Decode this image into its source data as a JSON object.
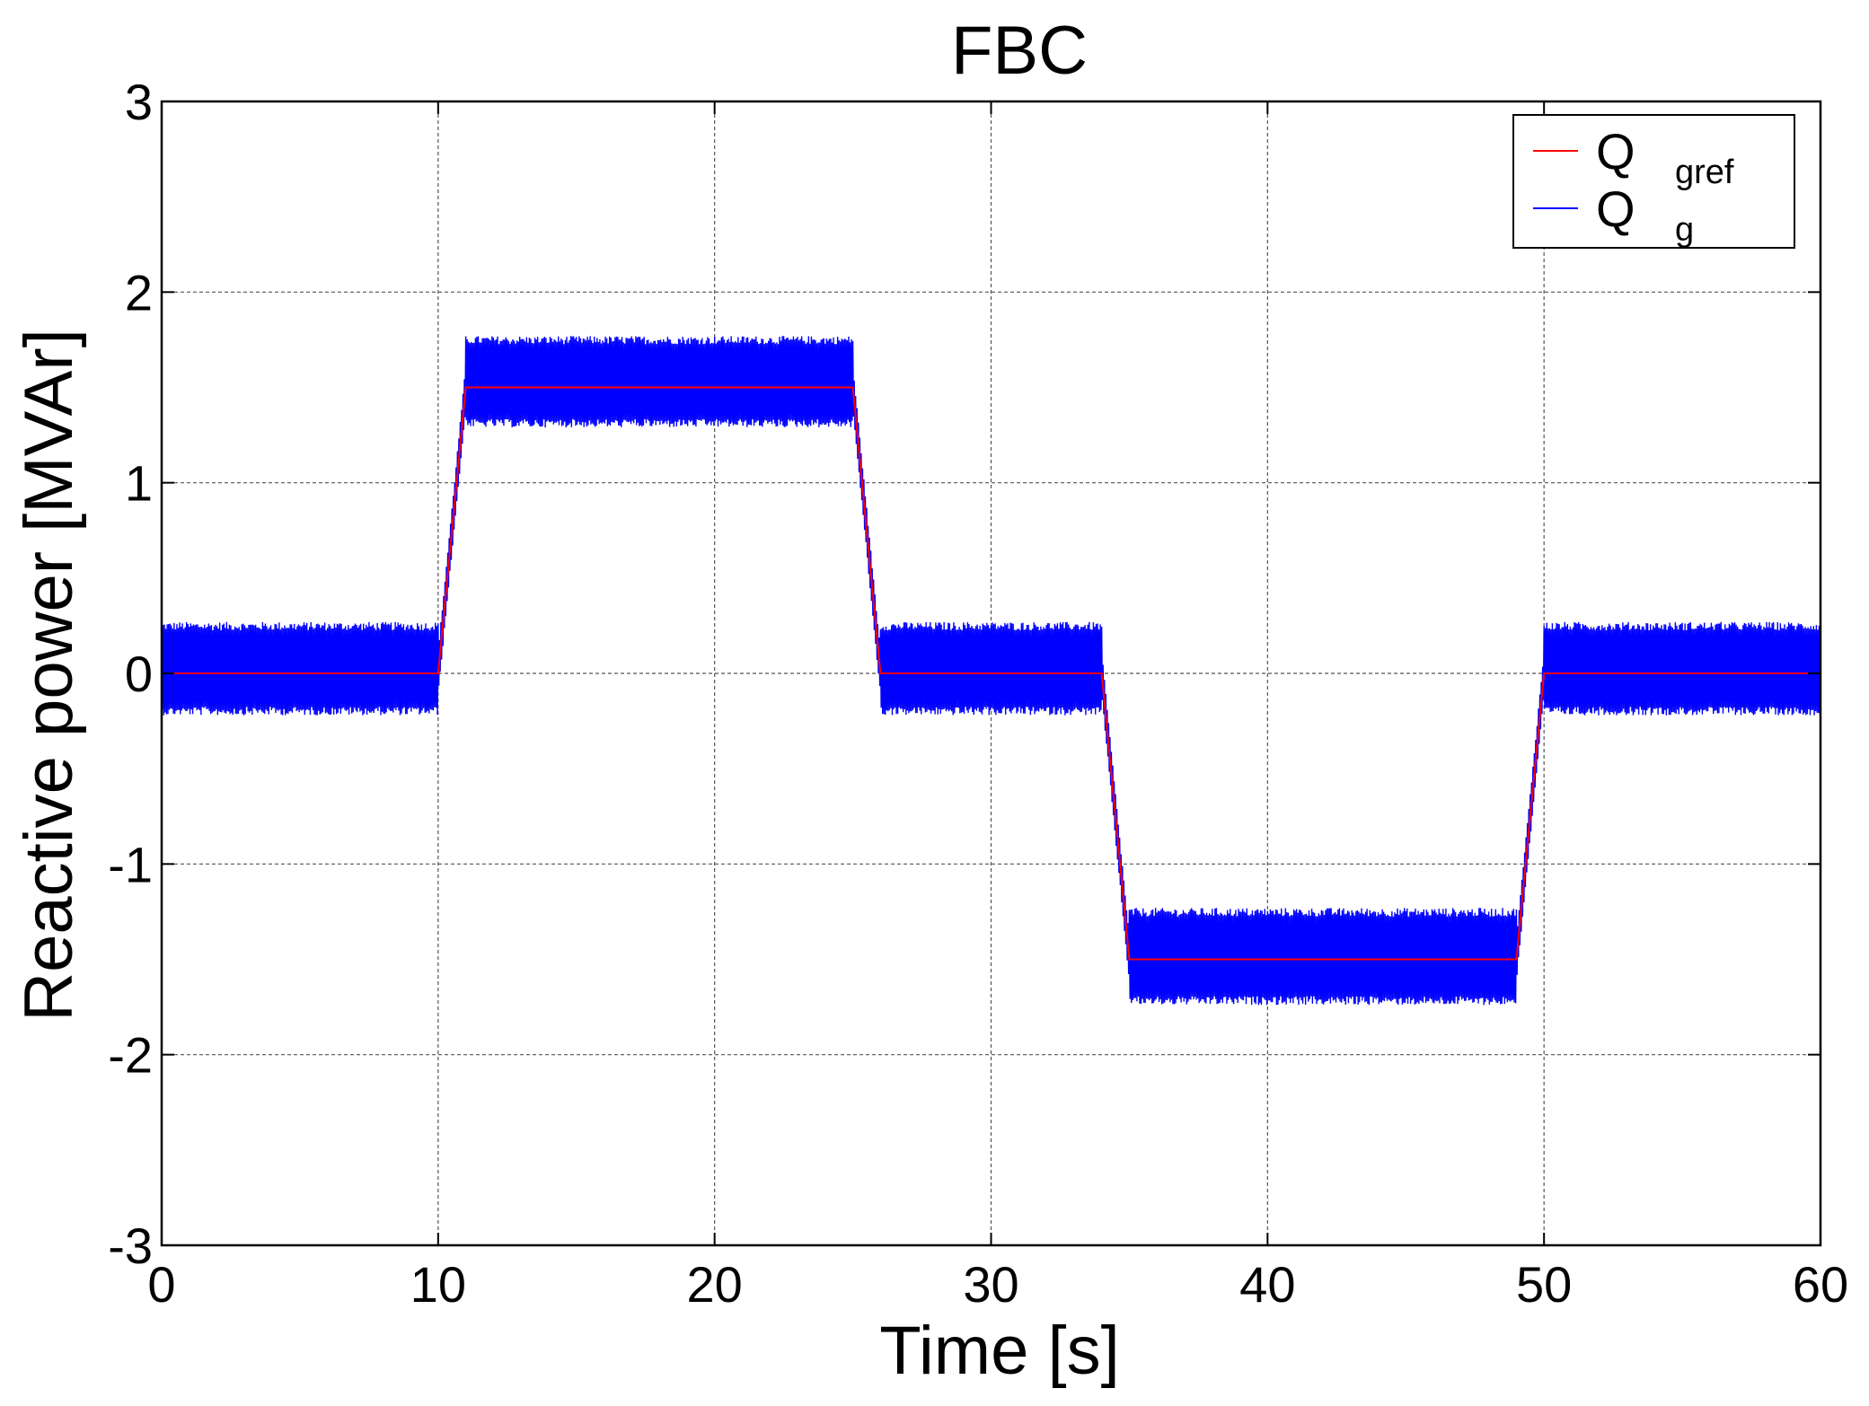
{
  "chart_data": {
    "type": "line",
    "title": "FBC",
    "xlabel": "Time [s]",
    "ylabel": "Reactive power [MVAr]",
    "xlim": [
      0,
      60
    ],
    "ylim": [
      -3,
      3
    ],
    "xticks": [
      0,
      10,
      20,
      30,
      40,
      50,
      60
    ],
    "yticks": [
      -3,
      -2,
      -1,
      0,
      1,
      2,
      3
    ],
    "grid": true,
    "legend_position": "top-right",
    "series": [
      {
        "name": "Q gref",
        "legend_main": "Q",
        "legend_sub": "gref",
        "color": "#ff0000",
        "x": [
          0,
          10,
          11,
          25,
          26,
          34,
          35,
          49,
          50,
          60
        ],
        "y": [
          0,
          0,
          1.5,
          1.5,
          0,
          0,
          -1.5,
          -1.5,
          0,
          0
        ]
      },
      {
        "name": "Q g",
        "legend_main": "Q",
        "legend_sub": "g",
        "color": "#0000ff",
        "style": "noisy tracking of reference",
        "envelope": [
          {
            "x_start": 0,
            "x_end": 10,
            "y_min": -0.22,
            "y_max": 0.27
          },
          {
            "x_start": 11,
            "x_end": 25,
            "y_min": 1.29,
            "y_max": 1.77
          },
          {
            "x_start": 26,
            "x_end": 34,
            "y_min": -0.22,
            "y_max": 0.27
          },
          {
            "x_start": 35,
            "x_end": 49,
            "y_min": -1.74,
            "y_max": -1.23
          },
          {
            "x_start": 50,
            "x_end": 60,
            "y_min": -0.22,
            "y_max": 0.27
          }
        ]
      }
    ]
  }
}
